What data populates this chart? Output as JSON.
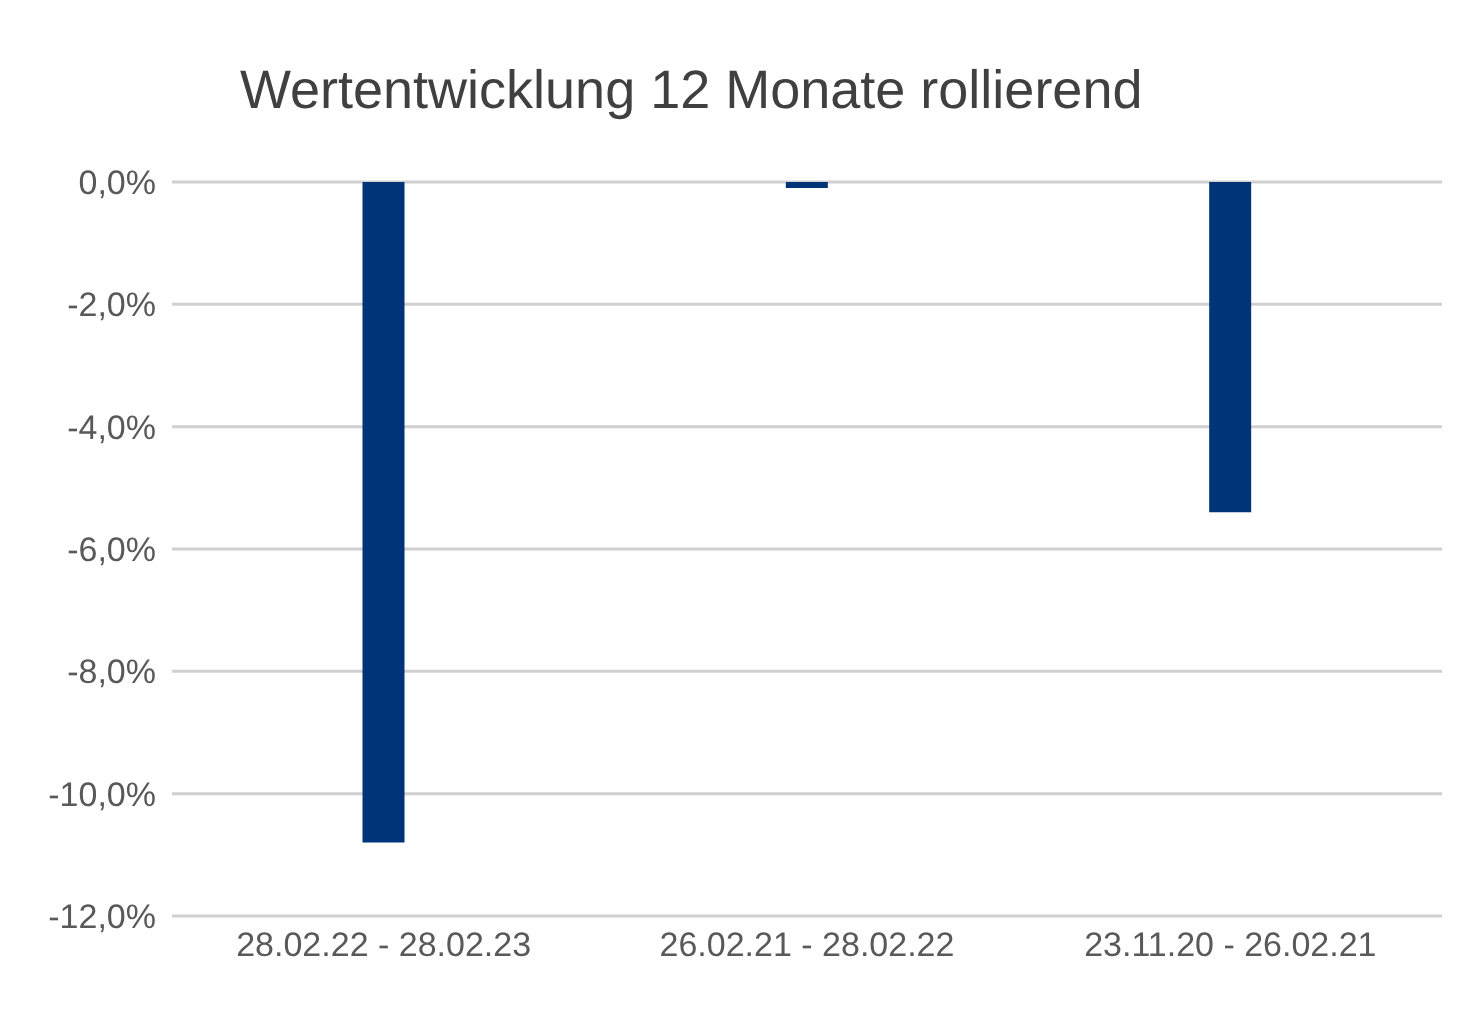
{
  "chart_data": {
    "type": "bar",
    "title": "Wertentwicklung 12 Monate rollierend",
    "categories": [
      "28.02.22 - 28.02.23",
      "26.02.21 - 28.02.22",
      "23.11.20 - 26.02.21"
    ],
    "values": [
      -10.8,
      -0.1,
      -5.4
    ],
    "color": "#003478",
    "ylim": [
      -12,
      0
    ],
    "yticks": [
      {
        "value": 0,
        "label": "0,0%"
      },
      {
        "value": -2,
        "label": "-2,0%"
      },
      {
        "value": -4,
        "label": "-4,0%"
      },
      {
        "value": -6,
        "label": "-6,0%"
      },
      {
        "value": -8,
        "label": "-8,0%"
      },
      {
        "value": -10,
        "label": "-10,0%"
      },
      {
        "value": -12,
        "label": "-12,0%"
      }
    ],
    "grid": "y"
  }
}
